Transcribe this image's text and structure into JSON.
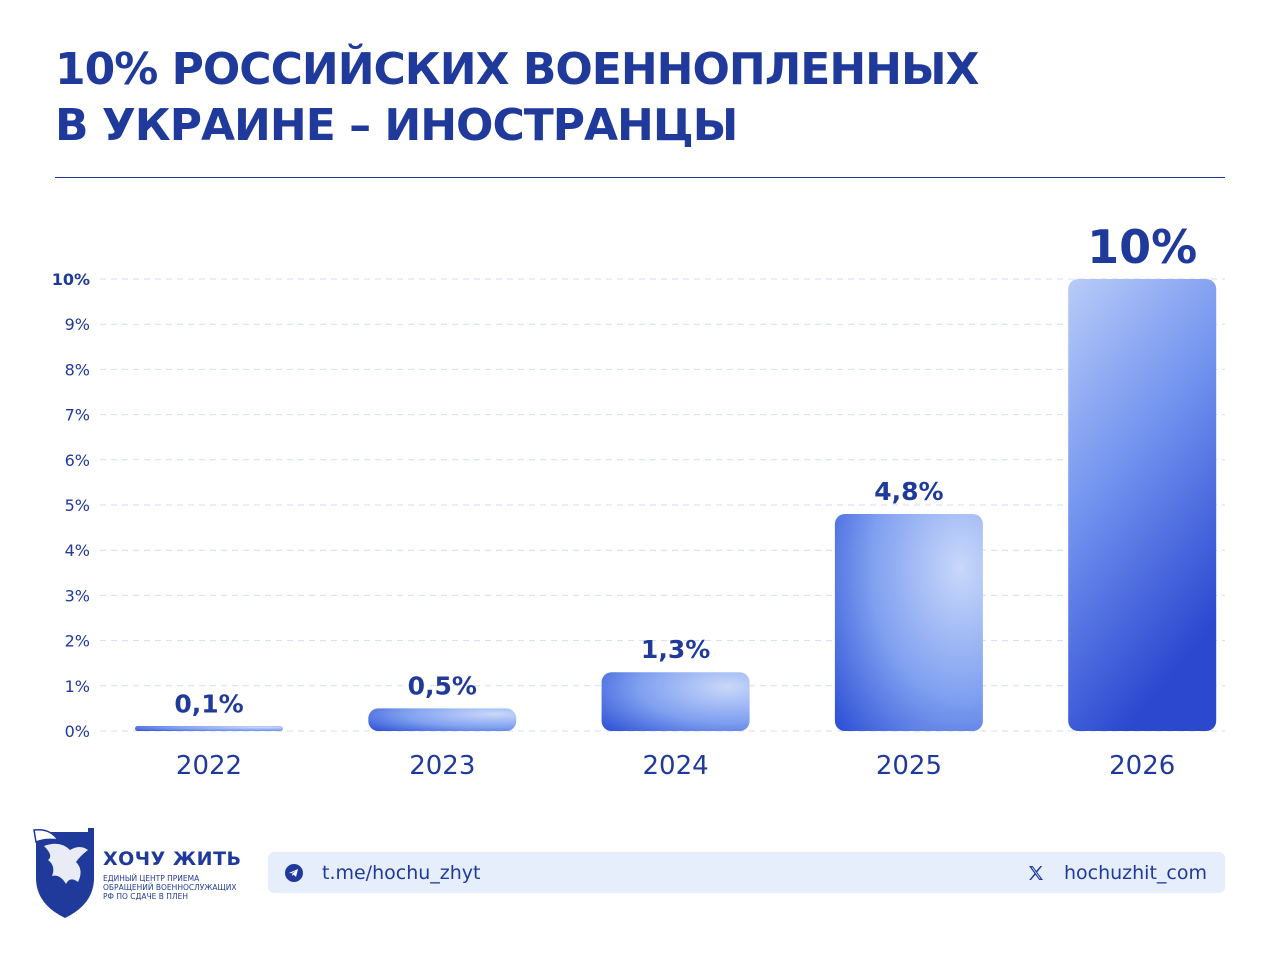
{
  "title": {
    "line1": "10% РОССИЙСКИХ ВОЕННОПЛЕННЫХ",
    "line2": "В УКРАИНЕ – ИНОСТРАНЦЫ"
  },
  "chart_data": {
    "type": "bar",
    "categories": [
      "2022",
      "2023",
      "2024",
      "2025",
      "2026"
    ],
    "values": [
      0.1,
      0.5,
      1.3,
      4.8,
      10
    ],
    "data_labels": [
      "0,1%",
      "0,5%",
      "1,3%",
      "4,8%",
      "10%"
    ],
    "ylim": [
      0,
      10
    ],
    "yticks": [
      "0%",
      "1%",
      "2%",
      "3%",
      "4%",
      "5%",
      "6%",
      "7%",
      "8%",
      "9%",
      "10%"
    ],
    "grid": true,
    "colors": {
      "bar_dark": "#2f52d6",
      "bar_light": "#c9d8fa",
      "text": "#1f3a9a",
      "grid": "#d4def2"
    }
  },
  "footer": {
    "telegram": "t.me/hochu_zhyt",
    "x_handle": "hochuzhit_com",
    "telegram_icon": "telegram-icon",
    "x_icon": "x-icon"
  },
  "logo": {
    "name": "ХОЧУ ЖИТЬ",
    "sub1": "ЕДИНЫЙ ЦЕНТР ПРИЕМА",
    "sub2": "ОБРАЩЕНИЙ ВОЕННОСЛУЖАЩИХ",
    "sub3": "РФ ПО СДАЧЕ В ПЛЕН"
  }
}
